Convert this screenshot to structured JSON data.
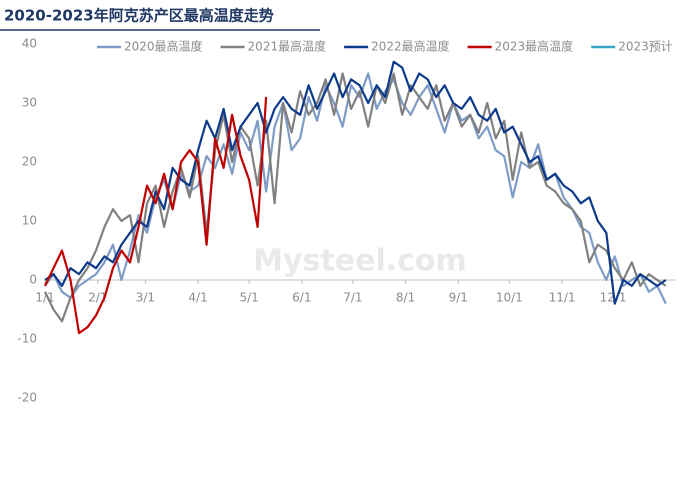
{
  "chart_data": {
    "type": "line",
    "title": "2020-2023年阿克苏产区最高温度走势",
    "watermark": "Mysteel.com",
    "x": [
      1,
      6,
      11,
      16,
      21,
      26,
      31,
      36,
      41,
      46,
      51,
      56,
      61,
      66,
      71,
      76,
      81,
      86,
      91,
      96,
      101,
      106,
      111,
      116,
      121,
      126,
      131,
      136,
      141,
      146,
      151,
      156,
      161,
      166,
      171,
      176,
      181,
      186,
      191,
      196,
      201,
      206,
      211,
      216,
      221,
      226,
      231,
      236,
      241,
      246,
      251,
      256,
      261,
      266,
      271,
      276,
      281,
      286,
      291,
      296,
      301,
      306,
      311,
      316,
      321,
      326,
      331,
      336,
      341,
      346,
      351,
      356,
      361,
      366
    ],
    "xlim": [
      1,
      372
    ],
    "xticks": [
      {
        "value": 1,
        "label": "1/1"
      },
      {
        "value": 32,
        "label": "2/1"
      },
      {
        "value": 60,
        "label": "3/1"
      },
      {
        "value": 91,
        "label": "4/1"
      },
      {
        "value": 121,
        "label": "5/1"
      },
      {
        "value": 152,
        "label": "6/1"
      },
      {
        "value": 182,
        "label": "7/1"
      },
      {
        "value": 213,
        "label": "8/1"
      },
      {
        "value": 244,
        "label": "9/1"
      },
      {
        "value": 274,
        "label": "10/1"
      },
      {
        "value": 305,
        "label": "11/1"
      },
      {
        "value": 335,
        "label": "12/1"
      }
    ],
    "ylim": [
      -20,
      40
    ],
    "yticks": [
      -20,
      -10,
      0,
      10,
      20,
      30,
      40
    ],
    "grid": false,
    "legend": "top",
    "series": [
      {
        "name": "2020最高温度",
        "color": "#7f9cc8",
        "values": [
          -1,
          1,
          -2,
          -3,
          -1,
          0,
          1,
          3,
          6,
          0,
          5,
          11,
          8,
          14,
          17,
          12,
          18,
          15,
          16,
          21,
          19,
          23,
          18,
          25,
          22,
          27,
          15,
          26,
          30,
          22,
          24,
          31,
          27,
          33,
          30,
          26,
          33,
          31,
          35,
          29,
          32,
          34,
          30,
          28,
          31,
          33,
          29,
          25,
          30,
          27,
          28,
          24,
          26,
          22,
          21,
          14,
          20,
          19,
          23,
          17,
          18,
          14,
          12,
          9,
          8,
          3,
          0,
          4,
          -1,
          0,
          1,
          -2,
          -1,
          -4
        ]
      },
      {
        "name": "2021最高温度",
        "color": "#808080",
        "values": [
          -2,
          -5,
          -7,
          -3,
          0,
          2,
          5,
          9,
          12,
          10,
          11,
          3,
          13,
          16,
          9,
          15,
          19,
          14,
          21,
          8,
          22,
          28,
          20,
          26,
          24,
          16,
          27,
          13,
          30,
          25,
          32,
          28,
          30,
          34,
          28,
          35,
          29,
          32,
          26,
          33,
          30,
          35,
          28,
          33,
          31,
          29,
          33,
          27,
          30,
          26,
          28,
          25,
          30,
          24,
          27,
          17,
          25,
          19,
          20,
          16,
          15,
          13,
          12,
          10,
          3,
          6,
          5,
          2,
          0,
          3,
          -1,
          1,
          0,
          -1
        ]
      },
      {
        "name": "2022最高温度",
        "color": "#0d3a8a",
        "values": [
          0,
          1,
          -1,
          2,
          1,
          3,
          2,
          4,
          3,
          6,
          8,
          10,
          9,
          15,
          12,
          19,
          17,
          16,
          22,
          27,
          24,
          29,
          22,
          26,
          28,
          30,
          25,
          29,
          31,
          29,
          28,
          33,
          29,
          32,
          35,
          31,
          34,
          33,
          30,
          33,
          31,
          37,
          36,
          32,
          35,
          34,
          31,
          33,
          30,
          29,
          31,
          28,
          27,
          29,
          25,
          26,
          23,
          20,
          21,
          17,
          18,
          16,
          15,
          13,
          14,
          10,
          8,
          -4,
          0,
          -1,
          1,
          0,
          -1,
          0
        ]
      },
      {
        "name": "2023最高温度",
        "color": "#c00000",
        "values": [
          -1,
          2,
          5,
          0,
          -9,
          -8,
          -6,
          -3,
          2,
          5,
          3,
          9,
          16,
          13,
          18,
          12,
          20,
          22,
          20,
          6,
          24,
          19,
          28,
          21,
          17,
          9,
          31,
          null,
          null,
          null,
          null,
          null,
          null,
          null,
          null,
          null,
          null,
          null,
          null,
          null,
          null,
          null,
          null,
          null,
          null,
          null,
          null,
          null,
          null,
          null,
          null,
          null,
          null,
          null,
          null,
          null,
          null,
          null,
          null,
          null,
          null,
          null,
          null,
          null,
          null,
          null,
          null,
          null,
          null,
          null,
          null,
          null,
          null,
          null
        ]
      },
      {
        "name": "2023预计",
        "color": "#3ba3c8"
      }
    ]
  }
}
